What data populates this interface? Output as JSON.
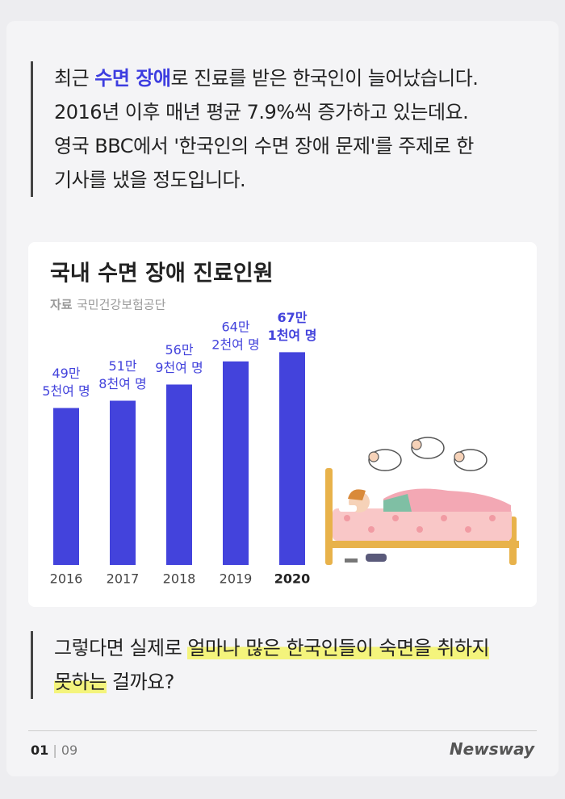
{
  "intro": {
    "lines": [
      [
        "최근 ",
        "수면 장애",
        "로 진료를 받은 한국인이 늘어났습니다."
      ],
      [
        "2016년 이후 매년 평균 7.9%씩 증가하고 있는데요."
      ],
      [
        "영국 BBC에서 '한국인의 수면 장애 문제'를 주제로 한"
      ],
      [
        "기사를 냈을 정도입니다."
      ]
    ]
  },
  "chart_data": {
    "type": "bar",
    "title": "국내 수면 장애 진료인원",
    "source_label": "자료",
    "source": "국민건강보험공단",
    "categories": [
      "2016",
      "2017",
      "2018",
      "2019",
      "2020"
    ],
    "values": [
      495000,
      518000,
      569000,
      642000,
      671000
    ],
    "value_labels": [
      [
        "49만",
        "5천여 명"
      ],
      [
        "51만",
        "8천여 명"
      ],
      [
        "56만",
        "9천여 명"
      ],
      [
        "64만",
        "2천여 명"
      ],
      [
        "67만",
        "1천여 명"
      ]
    ],
    "color": "#4343dc",
    "ylim": [
      0,
      700000
    ]
  },
  "question": {
    "lines": [
      [
        "그렇다면 실제로 ",
        "얼마나 많은 한국인들이 숙면을 취하지"
      ],
      [
        "못하는",
        " 걸까요?"
      ]
    ]
  },
  "footer": {
    "page": "01",
    "separator": "|",
    "total": "09",
    "brand": "Newsway"
  }
}
